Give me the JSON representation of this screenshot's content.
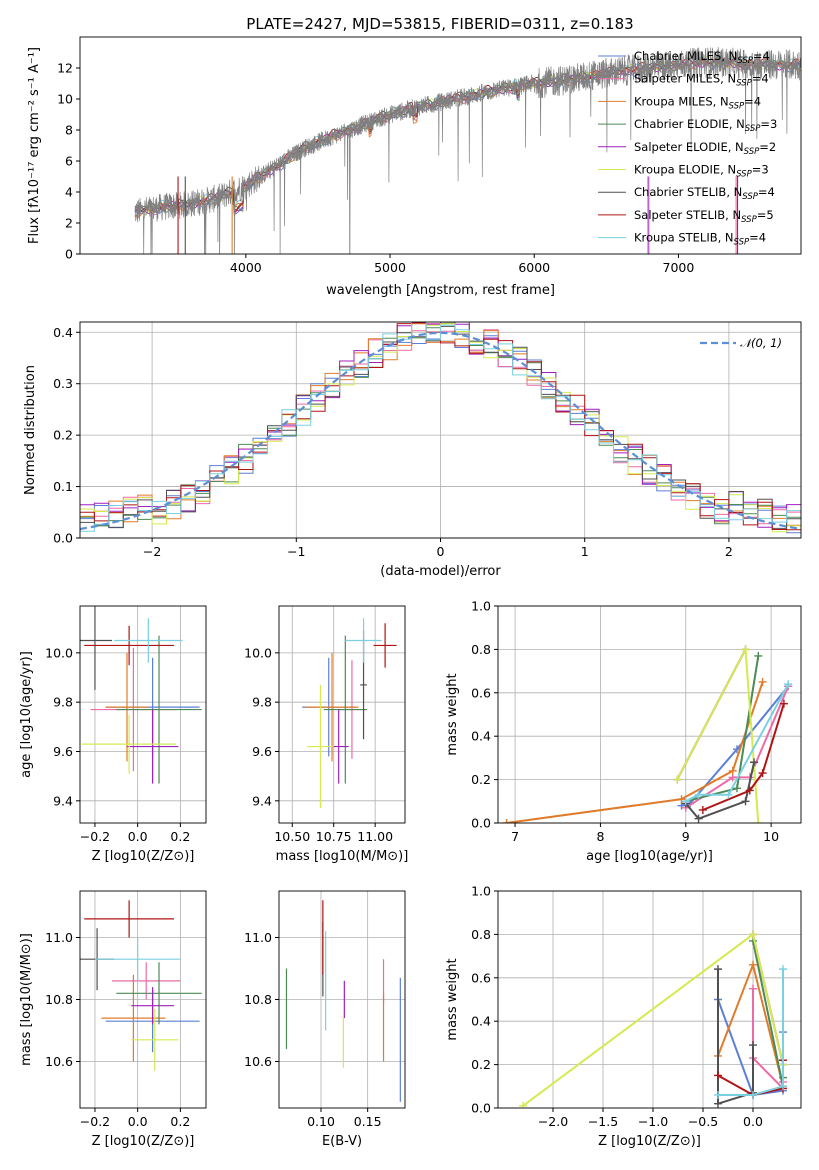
{
  "colors": {
    "Chabrier MILES": "#5b7fd6",
    "Salpeter MILES": "#ee6aa7",
    "Kroupa MILES": "#e07b2a",
    "Chabrier ELODIE": "#4d8a55",
    "Salpeter ELODIE": "#a020c0",
    "Kroupa ELODIE": "#d4ea50",
    "Chabrier STELIB": "#505050",
    "Salpeter STELIB": "#b01414",
    "Kroupa STELIB": "#7ad0e0",
    "data": "#808080",
    "normal": "#5b8fd8"
  },
  "series_names": [
    "Chabrier MILES",
    "Salpeter MILES",
    "Kroupa MILES",
    "Chabrier ELODIE",
    "Salpeter ELODIE",
    "Kroupa ELODIE",
    "Chabrier STELIB",
    "Salpeter STELIB",
    "Kroupa STELIB"
  ],
  "chart_data": [
    {
      "type": "line",
      "title": "PLATE=2427, MJD=53815, FIBERID=0311, z=0.183",
      "xlabel": "wavelength [Angstrom, rest frame]",
      "ylabel": "Flux [fλ10⁻¹⁷ erg cm⁻² s⁻¹ A⁻¹]",
      "xlim": [
        2850,
        7850
      ],
      "ylim": [
        0,
        14
      ],
      "xticks": [
        4000,
        5000,
        6000,
        7000
      ],
      "yticks": [
        0,
        2,
        4,
        6,
        8,
        10,
        12
      ],
      "legend": [
        "Chabrier MILES, N_SSP=4",
        "Salpeter MILES, N_SSP=4",
        "Kroupa MILES, N_SSP=4",
        "Chabrier ELODIE, N_SSP=3",
        "Salpeter ELODIE, N_SSP=2",
        "Kroupa ELODIE, N_SSP=3",
        "Chabrier STELIB, N_SSP=4",
        "Salpeter STELIB, N_SSP=5",
        "Kroupa STELIB, N_SSP=4"
      ],
      "legend_placement": "right",
      "continuum_x": [
        3230,
        3400,
        3600,
        3800,
        4000,
        4200,
        4400,
        4600,
        4800,
        5000,
        5200,
        5400,
        5600,
        5800,
        6000,
        6200,
        6400,
        6600,
        6800,
        7000,
        7200,
        7400,
        7600
      ],
      "continuum_y": [
        2.7,
        3.0,
        3.2,
        3.6,
        4.4,
        5.6,
        6.8,
        7.6,
        8.3,
        9.0,
        9.5,
        9.9,
        10.3,
        10.7,
        11.0,
        11.2,
        11.5,
        11.8,
        12.0,
        12.2,
        12.4,
        12.3,
        12.2
      ]
    },
    {
      "type": "step",
      "xlabel": "(data-model)/error",
      "ylabel": "Normed distribution",
      "xlim": [
        -2.5,
        2.5
      ],
      "ylim": [
        0,
        0.42
      ],
      "xticks": [
        -2,
        -1,
        0,
        1,
        2
      ],
      "yticks": [
        0.0,
        0.1,
        0.2,
        0.3,
        0.4
      ],
      "legend": [
        "𝒩(0, 1)"
      ],
      "legend_placement": "top-right",
      "bin_width": 0.1
    },
    {
      "type": "errorbar",
      "xlabel": "Z [log10(Z/Z⊙)]",
      "ylabel": "age [log10(age/yr)]",
      "xlim": [
        -0.27,
        0.32
      ],
      "ylim": [
        9.31,
        10.19
      ],
      "xticks": [
        -0.2,
        0.0,
        0.2
      ],
      "yticks": [
        9.4,
        9.6,
        9.8,
        10.0
      ],
      "points": [
        {
          "x": 0.07,
          "y": 9.78,
          "xerr": 0.22,
          "yerr": 0.2
        },
        {
          "x": -0.02,
          "y": 9.77,
          "xerr": 0.2,
          "yerr": 0.25
        },
        {
          "x": -0.05,
          "y": 9.78,
          "xerr": 0.1,
          "yerr": 0.22
        },
        {
          "x": 0.1,
          "y": 9.77,
          "xerr": 0.2,
          "yerr": 0.3
        },
        {
          "x": 0.07,
          "y": 9.62,
          "xerr": 0.12,
          "yerr": 0.15
        },
        {
          "x": -0.04,
          "y": 9.63,
          "xerr": 0.22,
          "yerr": 0.12
        },
        {
          "x": -0.2,
          "y": 10.05,
          "xerr": 0.08,
          "yerr": 0.2
        },
        {
          "x": -0.04,
          "y": 10.03,
          "xerr": 0.21,
          "yerr": 0.08
        },
        {
          "x": 0.05,
          "y": 10.05,
          "xerr": 0.16,
          "yerr": 0.09
        }
      ]
    },
    {
      "type": "errorbar",
      "xlabel": "mass [log10(M/M⊙)]",
      "xlim": [
        10.42,
        11.18
      ],
      "ylim": [
        9.31,
        10.19
      ],
      "xticks": [
        10.5,
        10.75,
        11.0
      ],
      "yticks": [
        9.4,
        9.6,
        9.8,
        10.0
      ],
      "points": [
        {
          "x": 10.72,
          "y": 9.78,
          "xerr": 0.16,
          "yerr": 0.2
        },
        {
          "x": 10.86,
          "y": 9.77,
          "xerr": 0.08,
          "yerr": 0.2
        },
        {
          "x": 10.74,
          "y": 9.78,
          "xerr": 0.16,
          "yerr": 0.22
        },
        {
          "x": 10.82,
          "y": 9.77,
          "xerr": 0.13,
          "yerr": 0.3
        },
        {
          "x": 10.78,
          "y": 9.62,
          "xerr": 0.06,
          "yerr": 0.15
        },
        {
          "x": 10.67,
          "y": 9.62,
          "xerr": 0.08,
          "yerr": 0.25
        },
        {
          "x": 10.93,
          "y": 9.87,
          "xerr": 0.02,
          "yerr": 0.22
        },
        {
          "x": 11.06,
          "y": 10.03,
          "xerr": 0.07,
          "yerr": 0.09
        },
        {
          "x": 10.93,
          "y": 10.05,
          "xerr": 0.11,
          "yerr": 0.09
        }
      ]
    },
    {
      "type": "line",
      "xlabel": "age [log10(age/yr)]",
      "ylabel": "mass weight",
      "xlim": [
        6.8,
        10.35
      ],
      "ylim": [
        0,
        1.0
      ],
      "xticks": [
        7,
        8,
        9,
        10
      ],
      "yticks": [
        0.0,
        0.2,
        0.4,
        0.6,
        0.8,
        1.0
      ],
      "series": [
        {
          "x": [
            8.95,
            9.05,
            9.6,
            10.2
          ],
          "y": [
            0.08,
            0.09,
            0.34,
            0.63
          ]
        },
        {
          "x": [
            9.0,
            9.55,
            9.75,
            10.2
          ],
          "y": [
            0.07,
            0.21,
            0.21,
            0.63
          ]
        },
        {
          "x": [
            6.9,
            8.95,
            9.55,
            9.9
          ],
          "y": [
            0.0,
            0.11,
            0.24,
            0.65
          ]
        },
        {
          "x": [
            9.0,
            9.6,
            9.85
          ],
          "y": [
            0.1,
            0.16,
            0.77
          ]
        },
        {
          "x": [
            8.9,
            9.7
          ],
          "y": [
            0.2,
            0.8
          ]
        },
        {
          "x": [
            8.9,
            9.7,
            9.85
          ],
          "y": [
            0.2,
            0.8,
            0.0
          ]
        },
        {
          "x": [
            9.0,
            9.15,
            9.7,
            9.8
          ],
          "y": [
            0.09,
            0.02,
            0.1,
            0.28
          ]
        },
        {
          "x": [
            9.2,
            9.75,
            9.9,
            10.15
          ],
          "y": [
            0.06,
            0.15,
            0.23,
            0.55
          ]
        },
        {
          "x": [
            9.0,
            9.15,
            9.5,
            10.2
          ],
          "y": [
            0.1,
            0.13,
            0.13,
            0.64
          ]
        }
      ]
    },
    {
      "type": "errorbar",
      "xlabel": "Z [log10(Z/Z⊙)]",
      "ylabel": "mass [log10(M/M⊙)]",
      "xlim": [
        -0.27,
        0.32
      ],
      "ylim": [
        10.45,
        11.15
      ],
      "xticks": [
        -0.2,
        0.0,
        0.2
      ],
      "yticks": [
        10.6,
        10.8,
        11.0
      ],
      "points": [
        {
          "x": 0.07,
          "y": 10.73,
          "xerr": 0.22,
          "yerr": 0.1
        },
        {
          "x": 0.04,
          "y": 10.86,
          "xerr": 0.16,
          "yerr": 0.06
        },
        {
          "x": -0.02,
          "y": 10.74,
          "xerr": 0.15,
          "yerr": 0.14
        },
        {
          "x": 0.1,
          "y": 10.82,
          "xerr": 0.2,
          "yerr": 0.1
        },
        {
          "x": 0.07,
          "y": 10.78,
          "xerr": 0.1,
          "yerr": 0.06
        },
        {
          "x": 0.08,
          "y": 10.67,
          "xerr": 0.11,
          "yerr": 0.1
        },
        {
          "x": -0.19,
          "y": 10.93,
          "xerr": 0.08,
          "yerr": 0.1
        },
        {
          "x": -0.04,
          "y": 11.06,
          "xerr": 0.21,
          "yerr": 0.06
        },
        {
          "x": 0.0,
          "y": 10.93,
          "xerr": 0.2,
          "yerr": 0.07
        }
      ]
    },
    {
      "type": "errorbar",
      "xlabel": "E(B-V)",
      "xlim": [
        0.055,
        0.19
      ],
      "ylim": [
        10.45,
        11.15
      ],
      "xticks": [
        0.1,
        0.15
      ],
      "yticks": [
        10.6,
        10.8,
        11.0
      ],
      "points": [
        {
          "x": 0.185,
          "y": 10.67,
          "yerr": 0.2
        },
        {
          "x": 0.167,
          "y": 10.86,
          "yerr": 0.07
        },
        {
          "x": 0.167,
          "y": 10.71,
          "yerr": 0.11
        },
        {
          "x": 0.063,
          "y": 10.77,
          "yerr": 0.13
        },
        {
          "x": 0.125,
          "y": 10.8,
          "yerr": 0.06
        },
        {
          "x": 0.124,
          "y": 10.67,
          "yerr": 0.09
        },
        {
          "x": 0.102,
          "y": 10.93,
          "yerr": 0.12
        },
        {
          "x": 0.102,
          "y": 11.0,
          "yerr": 0.12
        },
        {
          "x": 0.105,
          "y": 10.86,
          "yerr": 0.16
        }
      ]
    },
    {
      "type": "line",
      "xlabel": "Z [log10(Z/Z⊙)]",
      "ylabel": "mass weight",
      "xlim": [
        -2.55,
        0.48
      ],
      "ylim": [
        0,
        1.0
      ],
      "xticks": [
        -2.0,
        -1.5,
        -1.0,
        -0.5,
        0.0
      ],
      "yticks": [
        0.0,
        0.2,
        0.4,
        0.6,
        0.8,
        1.0
      ],
      "series": [
        {
          "x": [
            -0.35,
            0.0,
            0.3,
            0.3
          ],
          "y": [
            0.5,
            0.06,
            0.08,
            0.35
          ]
        },
        {
          "x": [
            0.0,
            0.0,
            0.3,
            0.3
          ],
          "y": [
            0.55,
            0.23,
            0.09,
            0.12
          ]
        },
        {
          "x": [
            -0.35,
            0.0,
            0.3,
            0.3
          ],
          "y": [
            0.24,
            0.66,
            0.1,
            0.1
          ]
        },
        {
          "x": [
            0.0,
            0.3,
            0.3
          ],
          "y": [
            0.77,
            0.1,
            0.14
          ]
        },
        {
          "x": [
            0.0,
            0.3
          ],
          "y": [
            0.8,
            0.2
          ]
        },
        {
          "x": [
            -2.3,
            0.0,
            0.3
          ],
          "y": [
            0.01,
            0.8,
            0.2
          ]
        },
        {
          "x": [
            -0.35,
            -0.35,
            0.0,
            0.0
          ],
          "y": [
            0.64,
            0.02,
            0.07,
            0.29
          ]
        },
        {
          "x": [
            -0.35,
            0.0,
            0.3,
            0.3
          ],
          "y": [
            0.15,
            0.06,
            0.09,
            0.22
          ]
        },
        {
          "x": [
            -0.35,
            0.0,
            0.3,
            0.3
          ],
          "y": [
            0.06,
            0.06,
            0.1,
            0.64
          ]
        }
      ]
    }
  ]
}
